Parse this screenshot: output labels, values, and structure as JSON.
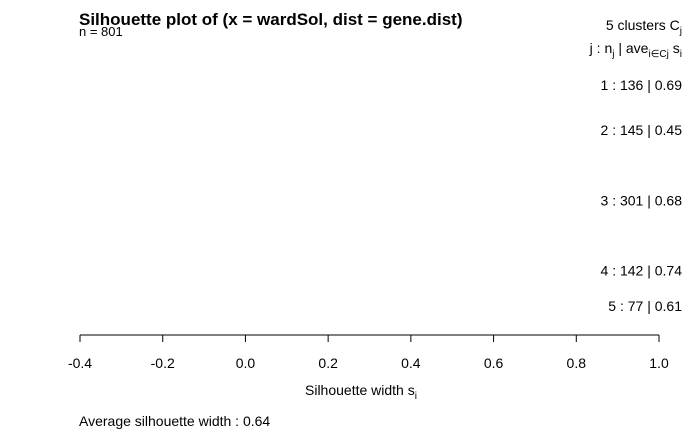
{
  "chart_data": {
    "type": "silhouette",
    "title": "Silhouette plot of (x = wardSol, dist = gene.dist)",
    "n_label": "n = 801",
    "header": {
      "clusters_line": "5  clusters  C",
      "clusters_sub": "j",
      "columns_line_a": "j :  n",
      "columns_sub_a": "j",
      "columns_line_b": " | ave",
      "columns_sub_b": "i∈Cj",
      "columns_line_c": " s",
      "columns_sub_c": "i"
    },
    "clusters": [
      {
        "id": 1,
        "n": 136,
        "avg": 0.69,
        "label": "1 :  136  |  0.69"
      },
      {
        "id": 2,
        "n": 145,
        "avg": 0.45,
        "label": "2 :  145  |  0.45"
      },
      {
        "id": 3,
        "n": 301,
        "avg": 0.68,
        "label": "3 :  301  |  0.68"
      },
      {
        "id": 4,
        "n": 142,
        "avg": 0.74,
        "label": "4 :  142  |  0.74"
      },
      {
        "id": 5,
        "n": 77,
        "avg": 0.61,
        "label": "5 :  77  |  0.61"
      }
    ],
    "xlim": [
      -0.4,
      1.0
    ],
    "xticks": [
      -0.4,
      -0.2,
      0.0,
      0.2,
      0.4,
      0.6,
      0.8,
      1.0
    ],
    "xtick_labels": [
      "-0.4",
      "-0.2",
      "0.0",
      "0.2",
      "0.4",
      "0.6",
      "0.8",
      "1.0"
    ],
    "xlabel": "Silhouette width s",
    "xlabel_sub": "i",
    "average_silhouette_width_label": "Average silhouette width :  0.64",
    "average_silhouette_width": 0.64
  }
}
